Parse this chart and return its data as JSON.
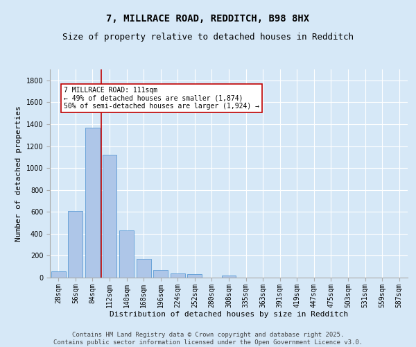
{
  "title": "7, MILLRACE ROAD, REDDITCH, B98 8HX",
  "subtitle": "Size of property relative to detached houses in Redditch",
  "xlabel": "Distribution of detached houses by size in Redditch",
  "ylabel": "Number of detached properties",
  "footer_line1": "Contains HM Land Registry data © Crown copyright and database right 2025.",
  "footer_line2": "Contains public sector information licensed under the Open Government Licence v3.0.",
  "bar_labels": [
    "28sqm",
    "56sqm",
    "84sqm",
    "112sqm",
    "140sqm",
    "168sqm",
    "196sqm",
    "224sqm",
    "252sqm",
    "280sqm",
    "308sqm",
    "335sqm",
    "363sqm",
    "391sqm",
    "419sqm",
    "447sqm",
    "475sqm",
    "503sqm",
    "531sqm",
    "559sqm",
    "587sqm"
  ],
  "bar_values": [
    60,
    605,
    1365,
    1120,
    430,
    170,
    70,
    40,
    30,
    0,
    20,
    0,
    0,
    0,
    0,
    0,
    0,
    0,
    0,
    0,
    0
  ],
  "bar_color": "#aec6e8",
  "bar_edgecolor": "#5b9bd5",
  "ylim": [
    0,
    1900
  ],
  "yticks": [
    0,
    200,
    400,
    600,
    800,
    1000,
    1200,
    1400,
    1600,
    1800
  ],
  "vline_index": 2.5,
  "vline_color": "#c00000",
  "annotation_text": "7 MILLRACE ROAD: 111sqm\n← 49% of detached houses are smaller (1,874)\n50% of semi-detached houses are larger (1,924) →",
  "annotation_box_color": "#ffffff",
  "annotation_box_edgecolor": "#c00000",
  "bg_color": "#d6e8f7",
  "plot_bg_color": "#d6e8f7",
  "grid_color": "#ffffff",
  "title_fontsize": 10,
  "subtitle_fontsize": 9,
  "label_fontsize": 8,
  "tick_fontsize": 7,
  "annot_fontsize": 7,
  "footer_fontsize": 6.5
}
